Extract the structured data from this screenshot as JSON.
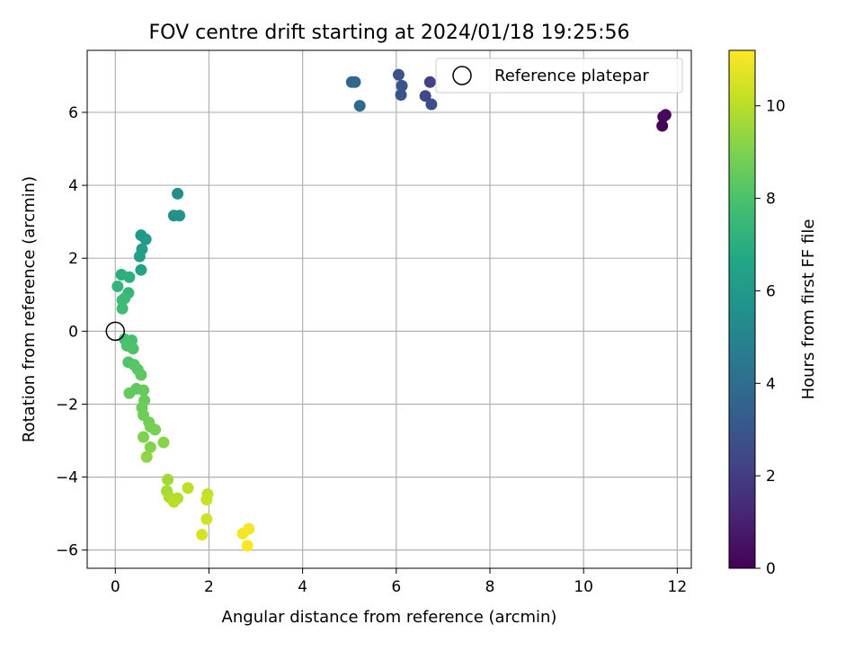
{
  "chart_data": {
    "type": "scatter",
    "title": "FOV centre drift starting at 2024/01/18 19:25:56",
    "xlabel": "Angular distance from reference (arcmin)",
    "ylabel": "Rotation from reference (arcmin)",
    "xlim": [
      -0.6,
      12.3
    ],
    "ylim": [
      -6.5,
      7.7
    ],
    "xticks": [
      0,
      2,
      4,
      6,
      8,
      10,
      12
    ],
    "yticks": [
      -6,
      -4,
      -2,
      0,
      2,
      4,
      6
    ],
    "grid": true,
    "legend": {
      "placement": "top-right",
      "entries": [
        "Reference platepar"
      ]
    },
    "colorbar": {
      "label": "Hours from first FF file",
      "min": 0,
      "max": 11.2,
      "ticks": [
        0,
        2,
        4,
        6,
        8,
        10
      ],
      "colormap": "viridis"
    },
    "reference_point": {
      "x": 0,
      "y": 0
    },
    "points": [
      {
        "x": 11.68,
        "y": 5.63,
        "h": 0.1
      },
      {
        "x": 11.7,
        "y": 5.88,
        "h": 0.2
      },
      {
        "x": 11.75,
        "y": 5.93,
        "h": 0.3
      },
      {
        "x": 6.72,
        "y": 6.83,
        "h": 2.2
      },
      {
        "x": 6.62,
        "y": 6.45,
        "h": 2.4
      },
      {
        "x": 6.75,
        "y": 6.22,
        "h": 2.6
      },
      {
        "x": 6.05,
        "y": 7.03,
        "h": 2.8
      },
      {
        "x": 6.12,
        "y": 6.73,
        "h": 2.9
      },
      {
        "x": 6.1,
        "y": 6.48,
        "h": 3.0
      },
      {
        "x": 5.05,
        "y": 6.83,
        "h": 3.6
      },
      {
        "x": 5.12,
        "y": 6.83,
        "h": 3.7
      },
      {
        "x": 5.22,
        "y": 6.18,
        "h": 3.8
      },
      {
        "x": 1.33,
        "y": 3.77,
        "h": 5.5
      },
      {
        "x": 1.25,
        "y": 3.17,
        "h": 5.6
      },
      {
        "x": 1.37,
        "y": 3.17,
        "h": 5.7
      },
      {
        "x": 0.55,
        "y": 2.63,
        "h": 6.0
      },
      {
        "x": 0.65,
        "y": 2.52,
        "h": 6.1
      },
      {
        "x": 0.57,
        "y": 2.25,
        "h": 6.2
      },
      {
        "x": 0.52,
        "y": 2.05,
        "h": 6.3
      },
      {
        "x": 0.55,
        "y": 1.68,
        "h": 6.5
      },
      {
        "x": 0.13,
        "y": 1.55,
        "h": 7.0
      },
      {
        "x": 0.3,
        "y": 1.48,
        "h": 7.1
      },
      {
        "x": 0.05,
        "y": 1.23,
        "h": 7.3
      },
      {
        "x": 0.28,
        "y": 1.05,
        "h": 7.4
      },
      {
        "x": 0.2,
        "y": 0.9,
        "h": 7.5
      },
      {
        "x": 0.15,
        "y": 0.85,
        "h": 7.6
      },
      {
        "x": 0.15,
        "y": 0.62,
        "h": 7.7
      },
      {
        "x": 0.2,
        "y": -0.22,
        "h": 7.8
      },
      {
        "x": 0.35,
        "y": -0.25,
        "h": 7.9
      },
      {
        "x": 0.25,
        "y": -0.4,
        "h": 8.0
      },
      {
        "x": 0.38,
        "y": -0.48,
        "h": 8.0
      },
      {
        "x": 0.28,
        "y": -0.85,
        "h": 8.1
      },
      {
        "x": 0.4,
        "y": -0.92,
        "h": 8.2
      },
      {
        "x": 0.48,
        "y": -1.05,
        "h": 8.3
      },
      {
        "x": 0.55,
        "y": -1.2,
        "h": 8.4
      },
      {
        "x": 0.45,
        "y": -1.58,
        "h": 8.4
      },
      {
        "x": 0.6,
        "y": -1.62,
        "h": 8.5
      },
      {
        "x": 0.3,
        "y": -1.7,
        "h": 8.5
      },
      {
        "x": 0.62,
        "y": -1.9,
        "h": 8.6
      },
      {
        "x": 0.57,
        "y": -2.1,
        "h": 8.7
      },
      {
        "x": 0.6,
        "y": -2.3,
        "h": 8.7
      },
      {
        "x": 0.72,
        "y": -2.5,
        "h": 8.8
      },
      {
        "x": 0.75,
        "y": -2.62,
        "h": 8.9
      },
      {
        "x": 0.85,
        "y": -2.7,
        "h": 8.9
      },
      {
        "x": 0.6,
        "y": -2.9,
        "h": 9.0
      },
      {
        "x": 0.75,
        "y": -3.18,
        "h": 9.1
      },
      {
        "x": 1.03,
        "y": -3.05,
        "h": 9.2
      },
      {
        "x": 0.67,
        "y": -3.45,
        "h": 9.3
      },
      {
        "x": 1.12,
        "y": -4.07,
        "h": 9.6
      },
      {
        "x": 1.1,
        "y": -4.38,
        "h": 9.7
      },
      {
        "x": 1.15,
        "y": -4.55,
        "h": 9.8
      },
      {
        "x": 1.33,
        "y": -4.58,
        "h": 9.9
      },
      {
        "x": 1.25,
        "y": -4.68,
        "h": 10.0
      },
      {
        "x": 1.55,
        "y": -4.3,
        "h": 10.1
      },
      {
        "x": 1.97,
        "y": -4.47,
        "h": 10.2
      },
      {
        "x": 1.95,
        "y": -4.62,
        "h": 10.3
      },
      {
        "x": 1.95,
        "y": -5.15,
        "h": 10.4
      },
      {
        "x": 1.85,
        "y": -5.58,
        "h": 10.5
      },
      {
        "x": 2.72,
        "y": -5.55,
        "h": 11.0
      },
      {
        "x": 2.85,
        "y": -5.42,
        "h": 11.1
      },
      {
        "x": 2.82,
        "y": -5.88,
        "h": 11.2
      }
    ]
  }
}
